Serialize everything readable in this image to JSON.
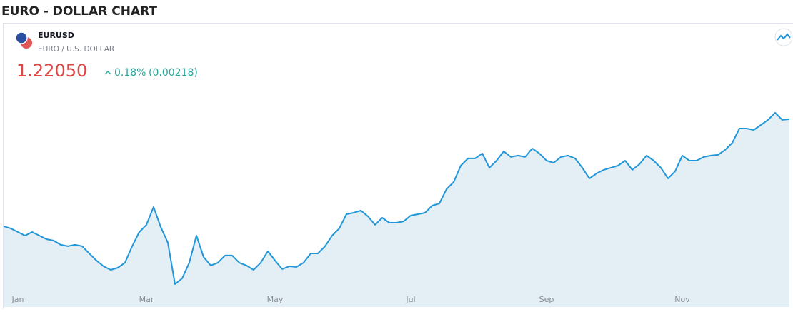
{
  "page_title": "EURO - DOLLAR CHART",
  "widget": {
    "symbol": "EURUSD",
    "description": "EURO / U.S. DOLLAR",
    "price": "1.22050",
    "change_percent": "0.18%",
    "change_value": "(0.00218)"
  },
  "chart_data": {
    "type": "area",
    "color": "#2196d8",
    "fill": "#e3eef5",
    "categories": [
      null,
      null,
      "Jan",
      null,
      null,
      null,
      null,
      null,
      null,
      null,
      null,
      null,
      null,
      null,
      null,
      null,
      null,
      null,
      null,
      null,
      "Mar",
      null,
      null,
      null,
      null,
      null,
      null,
      null,
      null,
      null,
      null,
      null,
      null,
      null,
      null,
      null,
      null,
      null,
      "May",
      null,
      null,
      null,
      null,
      null,
      null,
      null,
      null,
      null,
      null,
      null,
      null,
      null,
      null,
      null,
      null,
      null,
      null,
      "Jul",
      null,
      null,
      null,
      null,
      null,
      null,
      null,
      null,
      null,
      null,
      null,
      null,
      null,
      null,
      null,
      null,
      null,
      null,
      "Sep",
      null,
      null,
      null,
      null,
      null,
      null,
      null,
      null,
      null,
      null,
      null,
      null,
      null,
      null,
      null,
      null,
      null,
      null,
      "Nov",
      null,
      null,
      null,
      null,
      null,
      null,
      null,
      null,
      null,
      null,
      null,
      null,
      null,
      null,
      null
    ],
    "values": [
      1.1239,
      1.122,
      1.1187,
      1.1155,
      1.1187,
      1.1155,
      1.1123,
      1.111,
      1.1072,
      1.1059,
      1.1072,
      1.1059,
      1.0994,
      1.093,
      1.0878,
      1.0846,
      1.0865,
      1.0911,
      1.1059,
      1.1187,
      1.1252,
      1.1413,
      1.1233,
      1.1091,
      1.0717,
      1.0769,
      1.0911,
      1.1155,
      1.0962,
      1.0885,
      1.0911,
      1.0975,
      1.0975,
      1.0911,
      1.0885,
      1.0846,
      1.0911,
      1.1014,
      1.093,
      1.0853,
      1.0878,
      1.0872,
      1.0911,
      1.0994,
      1.0994,
      1.1059,
      1.1155,
      1.122,
      1.1348,
      1.1361,
      1.1381,
      1.1329,
      1.1252,
      1.1316,
      1.1271,
      1.1271,
      1.1284,
      1.1336,
      1.1348,
      1.1361,
      1.1426,
      1.1445,
      1.1574,
      1.1638,
      1.1786,
      1.1851,
      1.1851,
      1.1896,
      1.1767,
      1.1831,
      1.1915,
      1.1864,
      1.1877,
      1.1864,
      1.1941,
      1.1896,
      1.1831,
      1.1812,
      1.1864,
      1.1877,
      1.1851,
      1.1767,
      1.167,
      1.1716,
      1.1748,
      1.1767,
      1.1786,
      1.1831,
      1.1748,
      1.1799,
      1.1877,
      1.1831,
      1.1767,
      1.167,
      1.1735,
      1.1877,
      1.1831,
      1.1831,
      1.1864,
      1.1877,
      1.1883,
      1.1928,
      1.1992,
      1.2121,
      1.2121,
      1.2108,
      1.2153,
      1.2199,
      1.2263,
      1.2199,
      1.2205
    ],
    "ylim": [
      1.0511,
      1.2475
    ]
  }
}
